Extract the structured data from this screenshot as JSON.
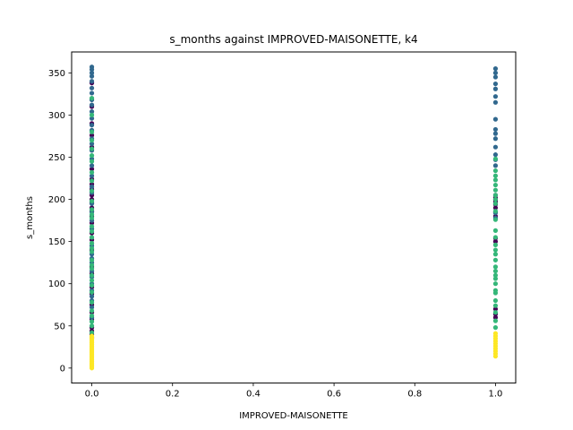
{
  "chart_data": {
    "type": "scatter",
    "title": "s_months against IMPROVED-MAISONETTE, k4",
    "xlabel": "IMPROVED-MAISONETTE",
    "ylabel": "s_months",
    "xlim": [
      -0.05,
      1.05
    ],
    "ylim": [
      -17.8,
      374.8
    ],
    "xticks": [
      {
        "value": 0.0,
        "label": "0.0"
      },
      {
        "value": 0.2,
        "label": "0.2"
      },
      {
        "value": 0.4,
        "label": "0.4"
      },
      {
        "value": 0.6,
        "label": "0.6"
      },
      {
        "value": 0.8,
        "label": "0.8"
      },
      {
        "value": 1.0,
        "label": "1.0"
      }
    ],
    "yticks": [
      {
        "value": 0,
        "label": "0"
      },
      {
        "value": 50,
        "label": "50"
      },
      {
        "value": 100,
        "label": "100"
      },
      {
        "value": 150,
        "label": "150"
      },
      {
        "value": 200,
        "label": "200"
      },
      {
        "value": 250,
        "label": "250"
      },
      {
        "value": 300,
        "label": "300"
      },
      {
        "value": 350,
        "label": "350"
      }
    ],
    "grid": false,
    "legend": "none",
    "cluster_colors": [
      "#440154",
      "#31688e",
      "#35b779",
      "#fde725"
    ],
    "series": [
      {
        "cluster": 0,
        "x": 0,
        "y": [
          36,
          40,
          44,
          48,
          58,
          66,
          75,
          88,
          96,
          112,
          120,
          140,
          152,
          160,
          172,
          180,
          186,
          190,
          196,
          200,
          205,
          212,
          218,
          224,
          236,
          262,
          276,
          290,
          310,
          338
        ]
      },
      {
        "cluster": 1,
        "x": 0,
        "y": [
          60,
          72,
          80,
          85,
          92,
          100,
          108,
          115,
          125,
          130,
          135,
          145,
          165,
          175,
          185,
          195,
          208,
          215,
          228,
          240,
          248,
          258,
          266,
          272,
          282,
          288,
          296,
          304,
          312,
          318,
          326,
          332,
          340,
          346,
          350,
          354,
          357
        ]
      },
      {
        "cluster": 2,
        "x": 0,
        "y": [
          42,
          50,
          55,
          62,
          68,
          78,
          90,
          98,
          104,
          110,
          118,
          122,
          128,
          138,
          142,
          148,
          155,
          162,
          168,
          178,
          182,
          188,
          198,
          210,
          222,
          232,
          245,
          252,
          260,
          270,
          280,
          300,
          320
        ]
      },
      {
        "cluster": 3,
        "x": 0,
        "y": [
          0,
          2,
          4,
          6,
          8,
          10,
          12,
          14,
          16,
          18,
          20,
          22,
          24,
          26,
          28,
          30,
          32,
          34,
          36,
          38
        ]
      },
      {
        "cluster": 0,
        "x": 1,
        "y": [
          60,
          64,
          70,
          150,
          154,
          180,
          185,
          190,
          194,
          196,
          198,
          200,
          202,
          205
        ]
      },
      {
        "cluster": 1,
        "x": 1,
        "y": [
          178,
          184,
          240,
          247,
          253,
          262,
          272,
          278,
          283,
          295,
          315,
          322,
          331,
          337,
          345,
          350,
          355
        ]
      },
      {
        "cluster": 2,
        "x": 1,
        "y": [
          48,
          56,
          66,
          74,
          80,
          89,
          92,
          100,
          106,
          110,
          115,
          120,
          128,
          135,
          140,
          146,
          155,
          163,
          176,
          186,
          195,
          200,
          205,
          211,
          217,
          223,
          228,
          234,
          248
        ]
      },
      {
        "cluster": 3,
        "x": 1,
        "y": [
          14,
          17,
          20,
          23,
          26,
          29,
          32,
          35,
          38,
          41
        ]
      }
    ]
  }
}
